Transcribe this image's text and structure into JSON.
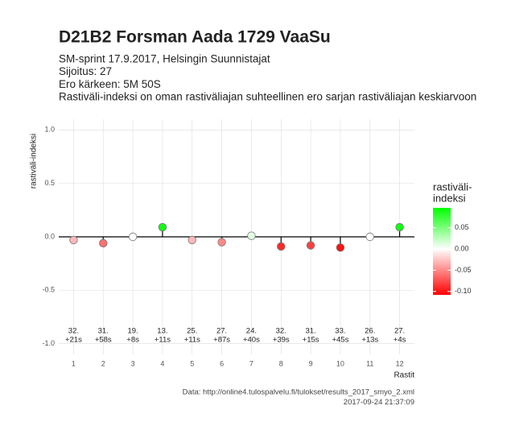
{
  "chart_data": {
    "type": "lollipop",
    "title": "D21B2 Forsman Aada 1729 VaaSu",
    "subtitle": [
      "SM-sprint 17.9.2017, Helsingin Suunnistajat",
      "Sijoitus: 27",
      "Ero kärkeen: 5M 50S",
      "Rastiväli-indeksi on oman rastiväliajan suhteellinen ero sarjan rastiväliajan keskiarvoon"
    ],
    "ylabel": "rastiväli-indeksi",
    "xlabel": "Rastit",
    "x": [
      1,
      2,
      3,
      4,
      5,
      6,
      7,
      8,
      9,
      10,
      11,
      12
    ],
    "values": [
      -0.03,
      -0.06,
      0.0,
      0.09,
      -0.03,
      -0.05,
      0.01,
      -0.09,
      -0.08,
      -0.1,
      0.0,
      0.09
    ],
    "point_labels": [
      [
        "32.",
        "+21s"
      ],
      [
        "31.",
        "+58s"
      ],
      [
        "19.",
        "+8s"
      ],
      [
        "13.",
        "+11s"
      ],
      [
        "25.",
        "+11s"
      ],
      [
        "27.",
        "+87s"
      ],
      [
        "24.",
        "+40s"
      ],
      [
        "32.",
        "+39s"
      ],
      [
        "31.",
        "+15s"
      ],
      [
        "33.",
        "+45s"
      ],
      [
        "26.",
        "+13s"
      ],
      [
        "27.",
        "+4s"
      ]
    ],
    "xlim": [
      0.5,
      12.5
    ],
    "xticks": [
      1,
      2,
      3,
      4,
      5,
      6,
      7,
      8,
      9,
      10,
      11,
      12
    ],
    "ylim": [
      -1.1,
      1.1
    ],
    "yticks": [
      {
        "value": -1,
        "label": "-1.0"
      },
      {
        "value": -0.5,
        "label": "-0.5"
      },
      {
        "value": 0,
        "label": "0.0"
      },
      {
        "value": 0.5,
        "label": "0.5"
      },
      {
        "value": 1,
        "label": "1.0"
      }
    ],
    "grid": true,
    "legend_title": [
      "rastiväli-",
      "indeksi"
    ],
    "legend_lim": [
      -0.108,
      0.097
    ],
    "legend_ticks": [
      0.05,
      {
        "value": 0,
        "label": "0.00"
      },
      -0.05,
      {
        "value": -0.1,
        "label": "-0.10"
      }
    ],
    "legend_colors": [
      "#ff0000",
      "#ffffff",
      "#00ff00"
    ],
    "caption": [
      "Data: http://online4.tulospalvelu.fi/tulokset/results_2017_smyo_2.xml",
      "2017-09-24 21:37:09"
    ]
  }
}
